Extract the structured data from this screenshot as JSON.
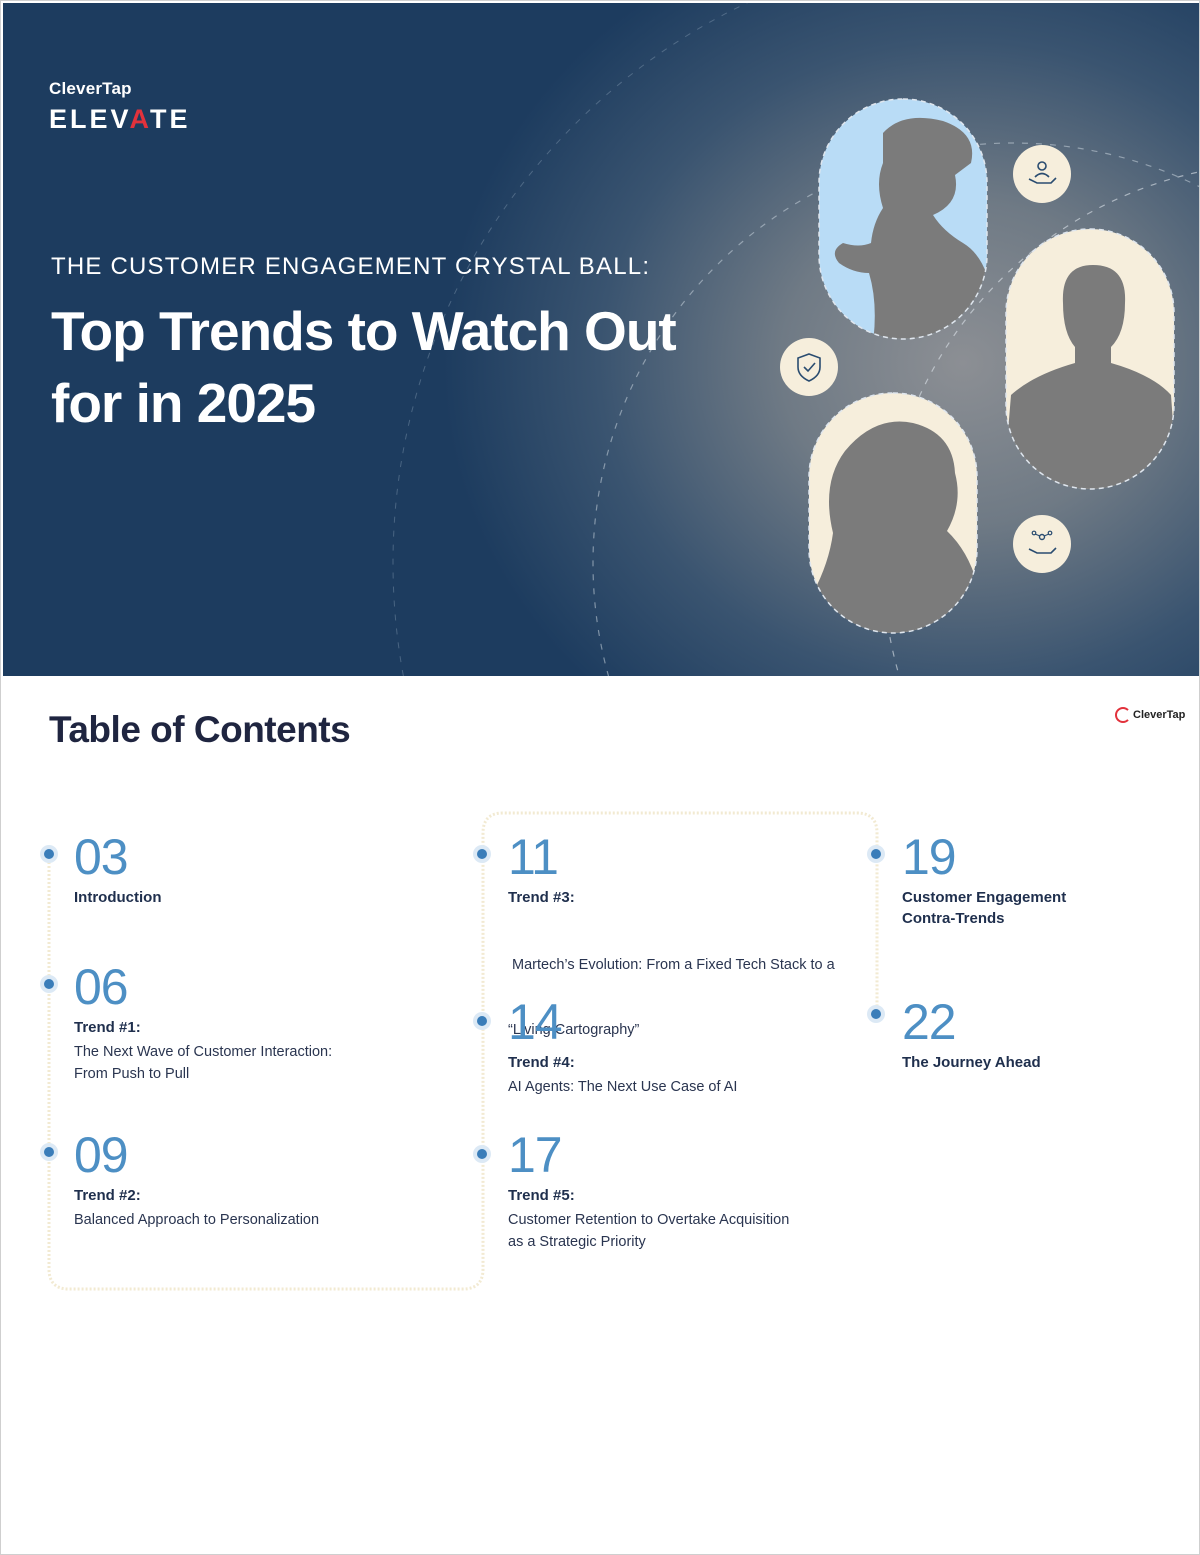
{
  "hero": {
    "brand_small": "CleverTap",
    "brand_big_before": "ELEV",
    "brand_big_accent": "A",
    "brand_big_after": "TE",
    "eyebrow": "THE CUSTOMER ENGAGEMENT CRYSTAL BALL:",
    "title_line1": "Top Trends to Watch Out",
    "title_line2": "for in 2025",
    "icons": [
      "person-in-hand-icon",
      "shield-check-icon",
      "network-in-hand-icon"
    ]
  },
  "toc": {
    "title": "Table of Contents",
    "logo_text": "CleverTap",
    "entries": [
      {
        "num": "03",
        "label": "Introduction",
        "desc": ""
      },
      {
        "num": "06",
        "label": "Trend #1:",
        "desc": "The Next Wave of Customer Interaction:",
        "desc2": "From Push to Pull"
      },
      {
        "num": "09",
        "label": "Trend #2:",
        "desc": "Balanced Approach to Personalization"
      },
      {
        "num": "11",
        "label": "Trend #3:",
        "desc": " Martech’s Evolution: From a Fixed Tech Stack to a",
        "desc2": "“Living Cartography”"
      },
      {
        "num": "14",
        "label": "Trend #4:",
        "desc": "AI Agents: The Next Use Case of AI"
      },
      {
        "num": "17",
        "label": "Trend #5:",
        "desc": "Customer Retention to Overtake Acquisition",
        "desc2": "as a Strategic Priority"
      },
      {
        "num": "19",
        "label": "Customer Engagement",
        "label2": "Contra-Trends"
      },
      {
        "num": "22",
        "label": "The Journey Ahead"
      }
    ]
  }
}
